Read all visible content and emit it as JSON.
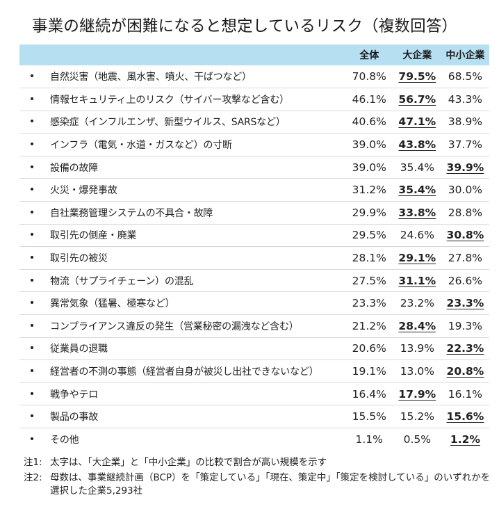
{
  "title": "事業の継続が困難になると想定しているリスク（複数回答）",
  "header": {
    "bullet": "",
    "item": "",
    "col_all": "全体",
    "col_large": "大企業",
    "col_sme": "中小企業"
  },
  "bullet_char": "•",
  "rows": [
    {
      "label": "自然災害（地震、風水害、噴火、干ばつなど）",
      "all": "70.8%",
      "large": "79.5%",
      "sme": "68.5%",
      "highlight": "large"
    },
    {
      "label": "情報セキュリティ上のリスク（サイバー攻撃など含む）",
      "all": "46.1%",
      "large": "56.7%",
      "sme": "43.3%",
      "highlight": "large"
    },
    {
      "label": "感染症（インフルエンザ、新型ウイルス、SARSなど）",
      "all": "40.6%",
      "large": "47.1%",
      "sme": "38.9%",
      "highlight": "large"
    },
    {
      "label": "インフラ（電気・水道・ガスなど）の寸断",
      "all": "39.0%",
      "large": "43.8%",
      "sme": "37.7%",
      "highlight": "large"
    },
    {
      "label": "設備の故障",
      "all": "39.0%",
      "large": "35.4%",
      "sme": "39.9%",
      "highlight": "sme"
    },
    {
      "label": "火災・爆発事故",
      "all": "31.2%",
      "large": "35.4%",
      "sme": "30.0%",
      "highlight": "large"
    },
    {
      "label": "自社業務管理システムの不具合・故障",
      "all": "29.9%",
      "large": "33.8%",
      "sme": "28.8%",
      "highlight": "large"
    },
    {
      "label": "取引先の倒産・廃業",
      "all": "29.5%",
      "large": "24.6%",
      "sme": "30.8%",
      "highlight": "sme"
    },
    {
      "label": "取引先の被災",
      "all": "28.1%",
      "large": "29.1%",
      "sme": "27.8%",
      "highlight": "large"
    },
    {
      "label": "物流（サプライチェーン）の混乱",
      "all": "27.5%",
      "large": "31.1%",
      "sme": "26.6%",
      "highlight": "large"
    },
    {
      "label": "異常気象（猛暑、極寒など）",
      "all": "23.3%",
      "large": "23.2%",
      "sme": "23.3%",
      "highlight": "sme"
    },
    {
      "label": "コンプライアンス違反の発生（営業秘密の漏洩など含む）",
      "all": "21.2%",
      "large": "28.4%",
      "sme": "19.3%",
      "highlight": "large"
    },
    {
      "label": "従業員の退職",
      "all": "20.6%",
      "large": "13.9%",
      "sme": "22.3%",
      "highlight": "sme"
    },
    {
      "label": "経営者の不測の事態（経営者自身が被災し出社できないなど）",
      "all": "19.1%",
      "large": "13.0%",
      "sme": "20.8%",
      "highlight": "sme"
    },
    {
      "label": "戦争やテロ",
      "all": "16.4%",
      "large": "17.9%",
      "sme": "16.1%",
      "highlight": "large"
    },
    {
      "label": "製品の事故",
      "all": "15.5%",
      "large": "15.2%",
      "sme": "15.6%",
      "highlight": "sme"
    },
    {
      "label": "その他",
      "all": "1.1%",
      "large": "0.5%",
      "sme": "1.2%",
      "highlight": "sme"
    }
  ],
  "notes": [
    {
      "label": "注1:",
      "text": "太字は、「大企業」と「中小企業」の比較で割合が高い規模を示す"
    },
    {
      "label": "注2:",
      "text": "母数は、事業継続計画（BCP）を「策定している」「現在、策定中」「策定を検討している」のいずれかを選択した企業5,293社"
    }
  ]
}
